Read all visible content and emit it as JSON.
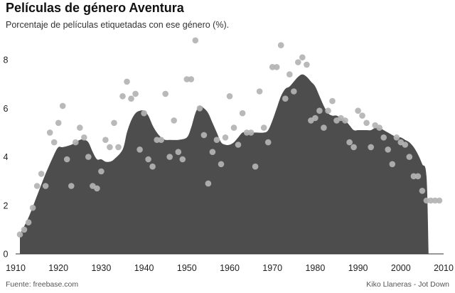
{
  "header": {
    "title": "Películas de género Aventura",
    "subtitle": "Porcentaje de películas etiquetadas con ese género (%)."
  },
  "footer": {
    "source": "Fuente: freebase.com",
    "credit": "Kiko Llaneras - Jot Down"
  },
  "colors": {
    "area": "#4d4d4d",
    "points": "#b3b3b3",
    "axis": "#333333",
    "text": "#222222"
  },
  "chart_data": {
    "type": "scatter",
    "title": "Películas de género Aventura",
    "subtitle": "Porcentaje de películas etiquetadas con ese género (%).",
    "xlabel": "",
    "ylabel": "",
    "xlim": [
      1910,
      2010
    ],
    "ylim": [
      0,
      9
    ],
    "x_ticks": [
      1910,
      1920,
      1930,
      1940,
      1950,
      1960,
      1970,
      1980,
      1990,
      2000,
      2010
    ],
    "y_ticks": [
      0,
      2,
      4,
      6,
      8
    ],
    "grid": false,
    "legend": "none",
    "series": [
      {
        "kind": "points",
        "x": [
          1911,
          1912,
          1913,
          1914,
          1915,
          1916,
          1917,
          1918,
          1919,
          1920,
          1921,
          1922,
          1923,
          1924,
          1925,
          1926,
          1927,
          1928,
          1929,
          1930,
          1931,
          1932,
          1933,
          1934,
          1935,
          1936,
          1937,
          1938,
          1939,
          1940,
          1941,
          1942,
          1943,
          1944,
          1945,
          1946,
          1947,
          1948,
          1949,
          1950,
          1951,
          1952,
          1953,
          1954,
          1955,
          1956,
          1957,
          1958,
          1959,
          1960,
          1961,
          1962,
          1963,
          1964,
          1965,
          1966,
          1967,
          1968,
          1969,
          1970,
          1971,
          1972,
          1973,
          1974,
          1975,
          1976,
          1977,
          1978,
          1979,
          1980,
          1981,
          1982,
          1983,
          1984,
          1985,
          1986,
          1987,
          1988,
          1989,
          1990,
          1991,
          1992,
          1993,
          1994,
          1995,
          1996,
          1997,
          1998,
          1999,
          2000,
          2001,
          2002,
          2003,
          2004,
          2005,
          2006,
          2007,
          2008,
          2009
        ],
        "y": [
          0.8,
          1.0,
          1.3,
          1.9,
          2.8,
          3.3,
          2.8,
          5.0,
          4.6,
          5.4,
          6.1,
          3.9,
          2.8,
          4.6,
          5.2,
          4.8,
          4.0,
          2.8,
          2.7,
          3.4,
          4.7,
          4.4,
          5.4,
          4.4,
          6.5,
          7.1,
          6.4,
          6.6,
          4.3,
          5.8,
          3.9,
          3.6,
          4.7,
          4.7,
          6.6,
          4.0,
          5.5,
          4.2,
          3.9,
          7.2,
          7.2,
          8.8,
          6.0,
          4.9,
          2.9,
          4.2,
          4.7,
          3.7,
          4.8,
          6.5,
          5.2,
          4.5,
          5.8,
          5.0,
          5.0,
          3.6,
          6.7,
          5.2,
          4.6,
          7.7,
          7.7,
          8.6,
          6.4,
          7.4,
          6.7,
          7.9,
          8.1,
          7.8,
          5.5,
          5.6,
          5.9,
          5.2,
          5.9,
          6.3,
          5.5,
          5.6,
          5.5,
          4.6,
          4.4,
          5.9,
          5.7,
          5.4,
          4.4,
          5.3,
          5.2,
          4.8,
          4.3,
          3.7,
          4.8,
          4.6,
          4.5,
          4.0,
          3.2,
          3.2,
          2.6,
          2.2,
          2.2,
          2.2,
          2.2
        ]
      },
      {
        "kind": "trend-area",
        "x": [
          1911,
          1913,
          1915,
          1917,
          1919,
          1920,
          1921,
          1923,
          1925,
          1926,
          1927,
          1928,
          1929,
          1930,
          1931,
          1932,
          1933,
          1935,
          1936,
          1937,
          1938,
          1939,
          1940,
          1941,
          1942,
          1943,
          1944,
          1945,
          1946,
          1948,
          1950,
          1951,
          1952,
          1953,
          1954,
          1955,
          1956,
          1957,
          1958,
          1959,
          1960,
          1961,
          1962,
          1963,
          1964,
          1966,
          1968,
          1969,
          1970,
          1971,
          1972,
          1973,
          1974,
          1975,
          1976,
          1977,
          1978,
          1979,
          1980,
          1981,
          1982,
          1983,
          1984,
          1985,
          1986,
          1987,
          1988,
          1989,
          1990,
          1991,
          1992,
          1993,
          1994,
          1995,
          1996,
          1997,
          1998,
          1999,
          2000,
          2001,
          2002,
          2003,
          2004,
          2005,
          2006,
          2006.5
        ],
        "y": [
          0.8,
          1.5,
          2.4,
          3.3,
          4.1,
          4.4,
          4.4,
          4.5,
          4.7,
          4.7,
          4.6,
          4.2,
          3.9,
          3.9,
          3.8,
          3.8,
          3.9,
          4.3,
          5.0,
          5.5,
          5.8,
          5.9,
          5.9,
          5.7,
          5.3,
          5.0,
          4.8,
          4.7,
          4.7,
          4.7,
          4.8,
          5.2,
          5.8,
          6.1,
          6.0,
          5.8,
          5.4,
          5.0,
          4.6,
          4.5,
          4.5,
          4.6,
          4.8,
          5.0,
          5.0,
          5.0,
          5.0,
          5.1,
          5.5,
          6.0,
          6.5,
          6.8,
          6.9,
          7.1,
          7.3,
          7.4,
          7.3,
          7.1,
          6.9,
          6.5,
          6.1,
          5.8,
          5.7,
          5.7,
          5.6,
          5.5,
          5.3,
          5.1,
          5.1,
          5.1,
          5.1,
          5.1,
          5.2,
          5.2,
          5.1,
          5.0,
          4.9,
          4.8,
          4.8,
          4.7,
          4.6,
          4.4,
          4.1,
          3.7,
          3.2,
          0
        ]
      }
    ]
  }
}
